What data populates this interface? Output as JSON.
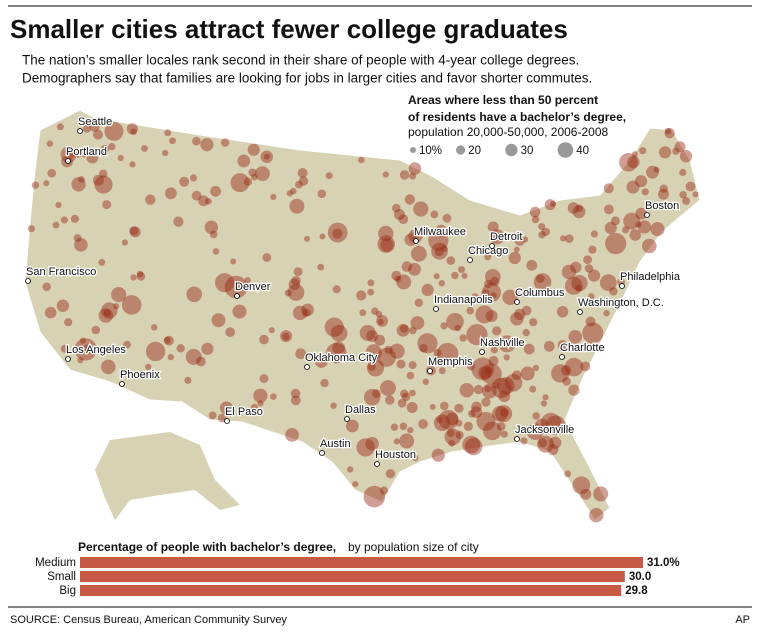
{
  "header": {
    "title": "Smaller cities attract fewer college graduates",
    "subtitle": [
      "The nation’s smaller locales rank second in their share of people with 4-year college degrees.",
      "Demographers say that families are looking for jobs in larger cities and favor shorter commutes."
    ]
  },
  "legend": {
    "title": [
      "Areas where less than 50 percent",
      "of residents have a bachelor’s degree,"
    ],
    "note": "population 20,000-50,000, 2006-2008",
    "sizes": [
      "10%",
      "20",
      "30",
      "40"
    ]
  },
  "map": {
    "cities": [
      "Seattle",
      "Portland",
      "San Francisco",
      "Los Angeles",
      "Phoenix",
      "Denver",
      "El Paso",
      "Oklahoma City",
      "Dallas",
      "Austin",
      "Houston",
      "Memphis",
      "Nashville",
      "Indianapolis",
      "Chicago",
      "Milwaukee",
      "Detroit",
      "Columbus",
      "Jacksonville",
      "Charlotte",
      "Washington, D.C.",
      "Philadelphia",
      "Boston"
    ]
  },
  "chart_data": {
    "type": "bar",
    "title": "Percentage of people with bachelor’s degree,",
    "subtitle": "by population size of city",
    "categories": [
      "Medium",
      "Small",
      "Big"
    ],
    "values": [
      31.0,
      30,
      29.8
    ],
    "value_labels": [
      "31.0%",
      "30.0",
      "29.8"
    ],
    "color": "#c65a45"
  },
  "footer": {
    "source": "SOURCE: Census Bureau, American Community Survey",
    "credit": "AP"
  }
}
